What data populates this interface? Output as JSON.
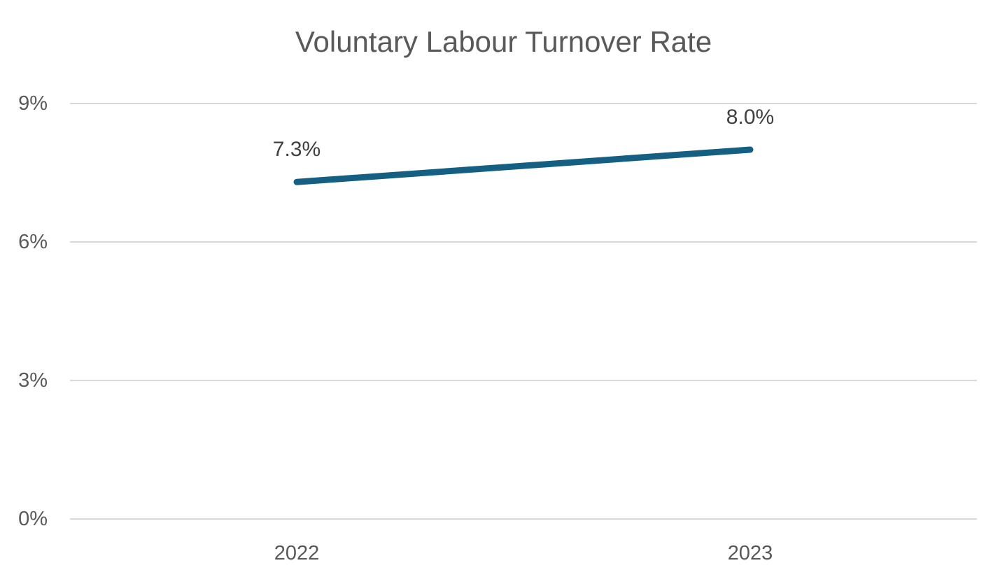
{
  "title": "Voluntary Labour Turnover Rate",
  "colors": {
    "series_line": "#156082",
    "gridline": "#d9d9d9",
    "axis_text": "#595959",
    "data_label_text": "#404040",
    "title_text": "#595959",
    "background": "#ffffff"
  },
  "chart_data": {
    "type": "line",
    "title": "Voluntary Labour Turnover Rate",
    "categories": [
      "2022",
      "2023"
    ],
    "series": [
      {
        "name": "Voluntary Labour Turnover Rate",
        "values": [
          7.3,
          8.0
        ],
        "data_labels": [
          "7.3%",
          "8.0%"
        ],
        "color": "#156082"
      }
    ],
    "xlabel": "",
    "ylabel": "",
    "ylim": [
      0,
      9
    ],
    "y_ticks": [
      {
        "value": 0,
        "label": "0%"
      },
      {
        "value": 3,
        "label": "3%"
      },
      {
        "value": 6,
        "label": "6%"
      },
      {
        "value": 9,
        "label": "9%"
      }
    ],
    "grid": "horizontal",
    "legend": "none"
  }
}
